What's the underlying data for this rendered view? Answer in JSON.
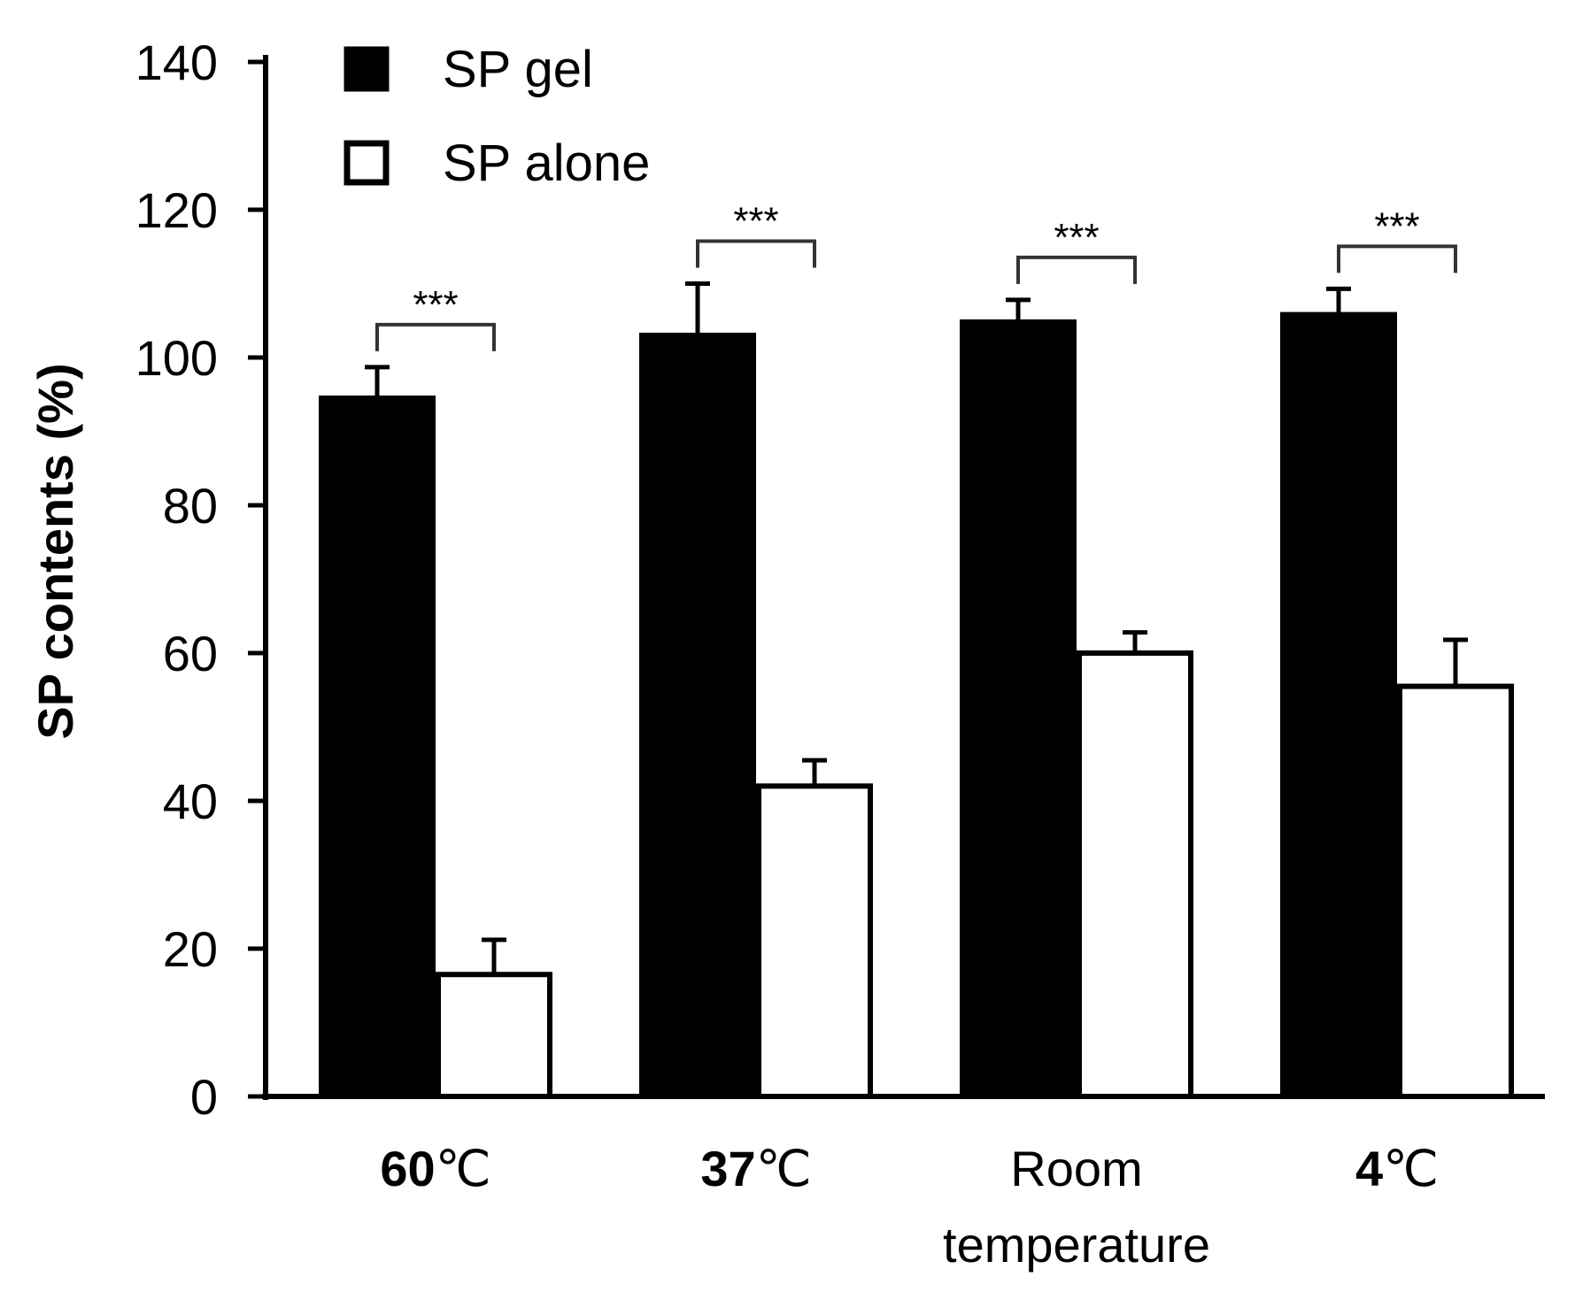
{
  "chart_data": {
    "type": "bar",
    "title": "",
    "xlabel": "",
    "ylabel": "SP contents (%)",
    "ylim": [
      0,
      140
    ],
    "yticks": [
      0,
      20,
      40,
      60,
      80,
      100,
      120,
      140
    ],
    "legend_position": "top-left",
    "categories": [
      {
        "number": "60",
        "unit": "℃",
        "line2": ""
      },
      {
        "number": "37",
        "unit": "℃",
        "line2": ""
      },
      {
        "number": "",
        "unit": "Room",
        "line2": "temperature"
      },
      {
        "number": "4",
        "unit": "℃",
        "line2": ""
      }
    ],
    "series": [
      {
        "name": "SP gel",
        "fill": "#000000",
        "values": [
          94.5,
          103,
          104.8,
          105.8
        ],
        "errors": [
          4.2,
          7,
          3,
          3.5
        ]
      },
      {
        "name": "SP alone",
        "fill": "#ffffff",
        "values": [
          16.5,
          42,
          60,
          55.5
        ],
        "errors": [
          4.7,
          3.5,
          2.8,
          6.3
        ]
      }
    ],
    "significance": [
      "***",
      "***",
      "***",
      "***"
    ],
    "colors": {
      "axis": "#000000",
      "gel": "#000000",
      "alone": "#ffffff"
    }
  }
}
